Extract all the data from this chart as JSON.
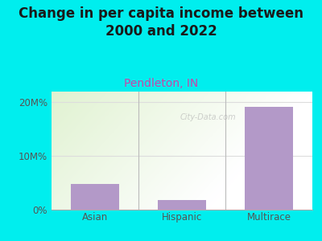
{
  "title": "Change in per capita income between\n2000 and 2022",
  "subtitle": "Pendleton, IN",
  "categories": [
    "Asian",
    "Hispanic",
    "Multirace"
  ],
  "values": [
    4800000,
    1800000,
    19200000
  ],
  "bar_color": "#b399c8",
  "background_color": "#00EEEE",
  "title_fontsize": 12,
  "title_color": "#1a1a1a",
  "subtitle_fontsize": 10,
  "subtitle_color": "#cc44aa",
  "tick_label_fontsize": 8.5,
  "tick_color": "#555555",
  "ylim": [
    0,
    22000000
  ],
  "yticks": [
    0,
    10000000,
    20000000
  ],
  "ytick_labels": [
    "0%",
    "10M%",
    "20M%"
  ],
  "watermark": "City-Data.com",
  "separator_color": "#bbbbbb",
  "grid_color": "#dddddd"
}
